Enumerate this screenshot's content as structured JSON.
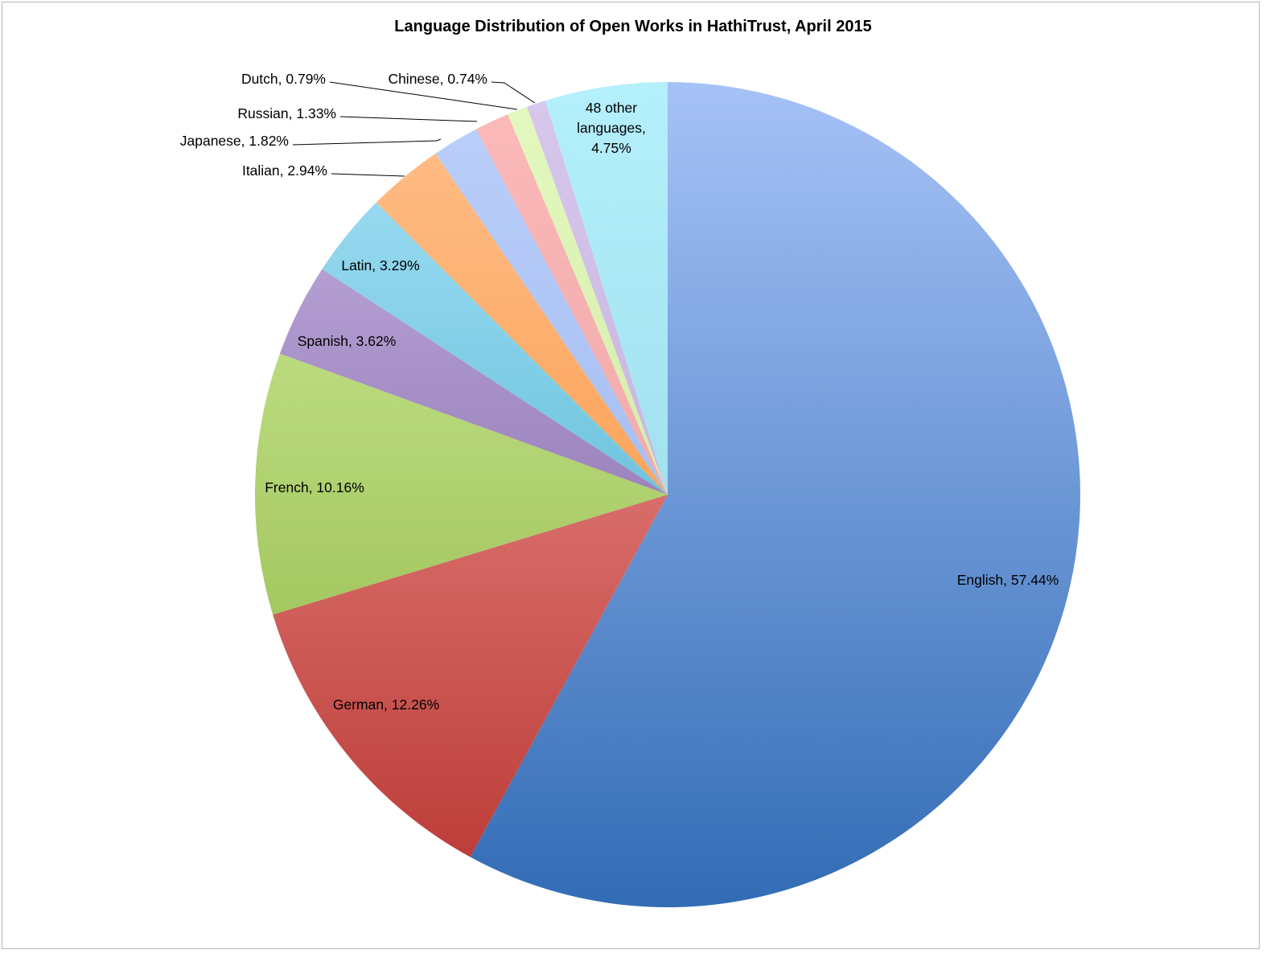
{
  "chart_data": {
    "type": "pie",
    "title": "Language Distribution of Open Works in HathiTrust, April 2015",
    "slices": [
      {
        "label": "English",
        "value": 57.44,
        "color_light": "#a6c2f7",
        "color_dark": "#326cb5"
      },
      {
        "label": "German",
        "value": 12.26,
        "color_light": "#f7a3a0",
        "color_dark": "#b93733"
      },
      {
        "label": "French",
        "value": 10.16,
        "color_light": "#d2f09d",
        "color_dark": "#8cb140"
      },
      {
        "label": "Spanish",
        "value": 3.62,
        "color_light": "#c8b4e3",
        "color_dark": "#6f5297"
      },
      {
        "label": "Latin",
        "value": 3.29,
        "color_light": "#a7e2f7",
        "color_dark": "#38a6c6"
      },
      {
        "label": "Italian",
        "value": 2.94,
        "color_light": "#ffc08c",
        "color_dark": "#f5892b"
      },
      {
        "label": "Japanese",
        "value": 1.82,
        "color_light": "#bcd0fa",
        "color_dark": "#90acea"
      },
      {
        "label": "Russian",
        "value": 1.33,
        "color_light": "#fbbaba",
        "color_dark": "#e79b9b"
      },
      {
        "label": "Dutch",
        "value": 0.79,
        "color_light": "#e4f8c0",
        "color_dark": "#c4e494"
      },
      {
        "label": "Chinese",
        "value": 0.74,
        "color_light": "#d8c8ec",
        "color_dark": "#b6a2d6"
      },
      {
        "label": "48 other languages",
        "value": 4.75,
        "color_light": "#b4f0fc",
        "color_dark": "#90d2e2"
      }
    ],
    "labels": [
      {
        "lines": [
          "English, 57.44%"
        ]
      },
      {
        "lines": [
          "German, 12.26%"
        ]
      },
      {
        "lines": [
          "French, 10.16%"
        ]
      },
      {
        "lines": [
          "Spanish, 3.62%"
        ]
      },
      {
        "lines": [
          "Latin, 3.29%"
        ]
      },
      {
        "lines": [
          "Italian, 2.94%"
        ]
      },
      {
        "lines": [
          "Japanese, 1.82%"
        ]
      },
      {
        "lines": [
          "Russian, 1.33%"
        ]
      },
      {
        "lines": [
          "Dutch, 0.79%"
        ]
      },
      {
        "lines": [
          "Chinese, 0.74%"
        ]
      },
      {
        "lines": [
          "48 other",
          "languages,",
          "4.75%"
        ]
      }
    ],
    "legend": "none"
  }
}
